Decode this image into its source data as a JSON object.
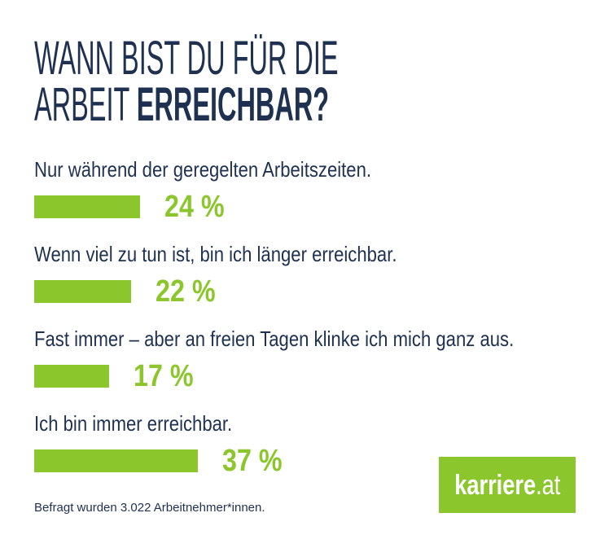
{
  "colors": {
    "navy": "#1e3150",
    "green": "#8cc62d",
    "white": "#ffffff"
  },
  "title": {
    "line1": "WANN BIST DU FÜR DIE",
    "line2_regular": "ARBEIT ",
    "line2_bold": "ERREICHBAR?"
  },
  "chart_data": {
    "type": "bar",
    "orientation": "horizontal",
    "title": "WANN BIST DU FÜR DIE ARBEIT ERREICHBAR?",
    "unit": "%",
    "xlim": [
      0,
      100
    ],
    "grid": false,
    "legend": false,
    "bar_color": "#8cc62d",
    "categories": [
      "Nur während der geregelten Arbeitszeiten.",
      "Wenn viel zu tun ist, bin ich länger erreichbar.",
      "Fast immer – aber an freien Tagen klinke ich mich ganz aus.",
      "Ich bin immer erreichbar."
    ],
    "values": [
      24,
      22,
      17,
      37
    ],
    "rows": [
      {
        "label": "Nur während der geregelten Arbeitszeiten.",
        "value": 24,
        "value_label": "24 %"
      },
      {
        "label": "Wenn viel zu tun ist, bin ich länger erreichbar.",
        "value": 22,
        "value_label": "22 %"
      },
      {
        "label": "Fast immer – aber an freien Tagen klinke ich mich ganz aus.",
        "value": 17,
        "value_label": "17 %"
      },
      {
        "label": "Ich bin immer erreichbar.",
        "value": 37,
        "value_label": "37 %"
      }
    ]
  },
  "footer": {
    "note": "Befragt wurden 3.022 Arbeitnehmer*innen."
  },
  "logo": {
    "text_bold": "karriere",
    "text_regular": ".at"
  }
}
